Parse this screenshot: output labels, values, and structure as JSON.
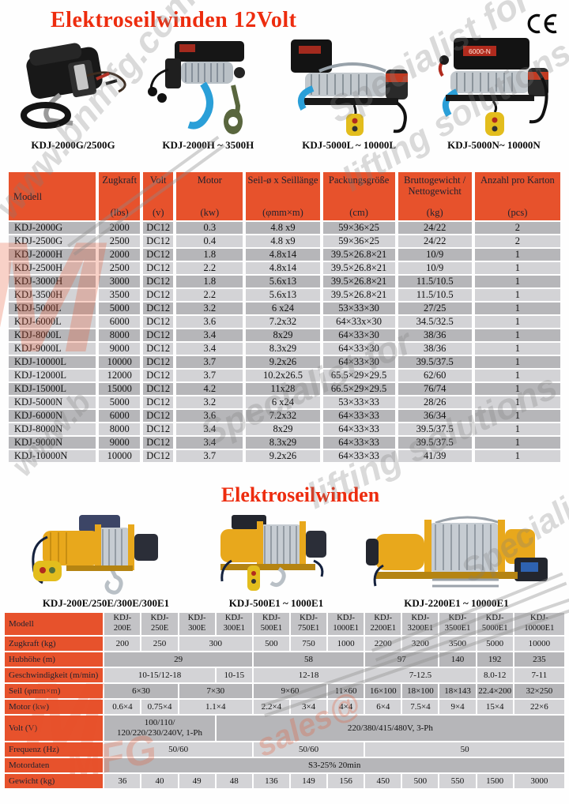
{
  "page": {
    "title_12v": "Elektroseilwinden 12Volt",
    "title_e": "Elektroseilwinden",
    "ce_mark": "CE"
  },
  "products_12v": [
    {
      "caption": "KDJ-2000G/2500G"
    },
    {
      "caption": "KDJ-2000H ~ 3500H"
    },
    {
      "caption": "KDJ-5000L ~ 10000L"
    },
    {
      "caption": "KDJ-5000N~ 10000N",
      "label": "6000-N"
    }
  ],
  "products_e": [
    {
      "caption": "KDJ-200E/250E/300E/300E1"
    },
    {
      "caption": "KDJ-500E1 ~ 1000E1"
    },
    {
      "caption": "KDJ-2200E1 ~ 10000E1"
    }
  ],
  "table1": {
    "headers": [
      {
        "name": "Modell",
        "unit": ""
      },
      {
        "name": "Zugkraft",
        "unit": "(lbs)"
      },
      {
        "name": "Volt",
        "unit": "(v)"
      },
      {
        "name": "Motor",
        "unit": "(kw)"
      },
      {
        "name": "Seil-ø x Seillänge",
        "unit": "(φmm×m)"
      },
      {
        "name": "Packungsgröße",
        "unit": "(cm)"
      },
      {
        "name": "Bruttogewicht /\nNettogewicht",
        "unit": "(kg)"
      },
      {
        "name": "Anzahl pro Karton",
        "unit": "(pcs)"
      }
    ],
    "rows": [
      [
        "KDJ-2000G",
        "2000",
        "DC12",
        "0.3",
        "4.8 x9",
        "59×36×25",
        "24/22",
        "2"
      ],
      [
        "KDJ-2500G",
        "2500",
        "DC12",
        "0.4",
        "4.8 x9",
        "59×36×25",
        "24/22",
        "2"
      ],
      [
        "KDJ-2000H",
        "2000",
        "DC12",
        "1.8",
        "4.8x14",
        "39.5×26.8×21",
        "10/9",
        "1"
      ],
      [
        "KDJ-2500H",
        "2500",
        "DC12",
        "2.2",
        "4.8x14",
        "39.5×26.8×21",
        "10/9",
        "1"
      ],
      [
        "KDJ-3000H",
        "3000",
        "DC12",
        "1.8",
        "5.6x13",
        "39.5×26.8×21",
        "11.5/10.5",
        "1"
      ],
      [
        "KDJ-3500H",
        "3500",
        "DC12",
        "2.2",
        "5.6x13",
        "39.5×26.8×21",
        "11.5/10.5",
        "1"
      ],
      [
        "KDJ-5000L",
        "5000",
        "DC12",
        "3.2",
        "6 x24",
        "53×33×30",
        "27/25",
        "1"
      ],
      [
        "KDJ-6000L",
        "6000",
        "DC12",
        "3.6",
        "7.2x32",
        "64×33x×30",
        "34.5/32.5",
        "1"
      ],
      [
        "KDJ-8000L",
        "8000",
        "DC12",
        "3.4",
        "8x29",
        "64×33×30",
        "38/36",
        "1"
      ],
      [
        "KDJ-9000L",
        "9000",
        "DC12",
        "3.4",
        "8.3x29",
        "64×33×30",
        "38/36",
        "1"
      ],
      [
        "KDJ-10000L",
        "10000",
        "DC12",
        "3.7",
        "9.2x26",
        "64×33×30",
        "39.5/37.5",
        "1"
      ],
      [
        "KDJ-12000L",
        "12000",
        "DC12",
        "3.7",
        "10.2x26.5",
        "65.5×29×29.5",
        "62/60",
        "1"
      ],
      [
        "KDJ-15000L",
        "15000",
        "DC12",
        "4.2",
        "11x28",
        "66.5×29×29.5",
        "76/74",
        "1"
      ],
      [
        "KDJ-5000N",
        "5000",
        "DC12",
        "3.2",
        "6 x24",
        "53×33×33",
        "28/26",
        "1"
      ],
      [
        "KDJ-6000N",
        "6000",
        "DC12",
        "3.6",
        "7.2x32",
        "64×33×33",
        "36/34",
        "1"
      ],
      [
        "KDJ-8000N",
        "8000",
        "DC12",
        "3.4",
        "8x29",
        "64×33×33",
        "39.5/37.5",
        "1"
      ],
      [
        "KDJ-9000N",
        "9000",
        "DC12",
        "3.4",
        "8.3x29",
        "64×33×33",
        "39.5/37.5",
        "1"
      ],
      [
        "KDJ-10000N",
        "10000",
        "DC12",
        "3.7",
        "9.2x26",
        "64×33×33",
        "41/39",
        "1"
      ]
    ]
  },
  "table2": {
    "corner": "Modell",
    "models": [
      "KDJ-200E",
      "KDJ-250E",
      "KDJ-300E",
      "KDJ-300E1",
      "KDJ-500E1",
      "KDJ-750E1",
      "KDJ-1000E1",
      "KDJ-2200E1",
      "KDJ-3200E1",
      "KDJ-3500E1",
      "KDJ-5000E1",
      "KDJ-10000E1"
    ],
    "rows": [
      {
        "label": "Zugkraft (kg)",
        "cells": [
          {
            "t": "200",
            "s": 1
          },
          {
            "t": "250",
            "s": 1
          },
          {
            "t": "300",
            "s": 2
          },
          {
            "t": "500",
            "s": 1
          },
          {
            "t": "750",
            "s": 1
          },
          {
            "t": "1000",
            "s": 1
          },
          {
            "t": "2200",
            "s": 1
          },
          {
            "t": "3200",
            "s": 1
          },
          {
            "t": "3500",
            "s": 1
          },
          {
            "t": "5000",
            "s": 1
          },
          {
            "t": "10000",
            "s": 1
          }
        ]
      },
      {
        "label": "Hubhöhe (m)",
        "cells": [
          {
            "t": "29",
            "s": 4
          },
          {
            "t": "58",
            "s": 3
          },
          {
            "t": "97",
            "s": 2
          },
          {
            "t": "140",
            "s": 1
          },
          {
            "t": "192",
            "s": 1
          },
          {
            "t": "235",
            "s": 1
          }
        ]
      },
      {
        "label": "Geschwindigkeit (m/min)",
        "cells": [
          {
            "t": "10-15/12-18",
            "s": 3
          },
          {
            "t": "10-15",
            "s": 1
          },
          {
            "t": "12-18",
            "s": 3
          },
          {
            "t": "7-12.5",
            "s": 3
          },
          {
            "t": "8.0-12",
            "s": 1
          },
          {
            "t": "7-11",
            "s": 1
          }
        ]
      },
      {
        "label": "Seil (φmm×m)",
        "cells": [
          {
            "t": "6×30",
            "s": 2
          },
          {
            "t": "7×30",
            "s": 2
          },
          {
            "t": "9×60",
            "s": 2
          },
          {
            "t": "11×60",
            "s": 1
          },
          {
            "t": "16×100",
            "s": 1
          },
          {
            "t": "18×100",
            "s": 1
          },
          {
            "t": "18×143",
            "s": 1
          },
          {
            "t": "22.4×200",
            "s": 1
          },
          {
            "t": "32×250",
            "s": 1
          }
        ]
      },
      {
        "label": "Motor (kw)",
        "cells": [
          {
            "t": "0.6×4",
            "s": 1
          },
          {
            "t": "0.75×4",
            "s": 1
          },
          {
            "t": "1.1×4",
            "s": 2
          },
          {
            "t": "2.2×4",
            "s": 1
          },
          {
            "t": "3×4",
            "s": 1
          },
          {
            "t": "4×4",
            "s": 1
          },
          {
            "t": "6×4",
            "s": 1
          },
          {
            "t": "7.5×4",
            "s": 1
          },
          {
            "t": "9×4",
            "s": 1
          },
          {
            "t": "15×4",
            "s": 1
          },
          {
            "t": "22×6",
            "s": 1
          }
        ]
      },
      {
        "label": "Volt (V)",
        "cells": [
          {
            "t": "100/110/\n120/220/230/240V, 1-Ph",
            "s": 3
          },
          {
            "t": "220/380/415/480V, 3-Ph",
            "s": 9
          }
        ]
      },
      {
        "label": "Frequenz (Hz)",
        "cells": [
          {
            "t": "50/60",
            "s": 4
          },
          {
            "t": "50/60",
            "s": 3
          },
          {
            "t": "50",
            "s": 5
          }
        ]
      },
      {
        "label": "Motordaten",
        "cells": [
          {
            "t": "S3-25% 20min",
            "s": 12
          }
        ]
      },
      {
        "label": "Gewicht (kg)",
        "cells": [
          {
            "t": "36",
            "s": 1
          },
          {
            "t": "40",
            "s": 1
          },
          {
            "t": "49",
            "s": 1
          },
          {
            "t": "48",
            "s": 1
          },
          {
            "t": "136",
            "s": 1
          },
          {
            "t": "149",
            "s": 1
          },
          {
            "t": "156",
            "s": 1
          },
          {
            "t": "450",
            "s": 1
          },
          {
            "t": "500",
            "s": 1
          },
          {
            "t": "550",
            "s": 1
          },
          {
            "t": "1500",
            "s": 1
          },
          {
            "t": "3000",
            "s": 1
          }
        ]
      }
    ]
  },
  "watermark": {
    "url": "www.bnmfg.com",
    "url_short": "www.b",
    "spec": "Specialist for",
    "sol": "lifting solutions",
    "sales": "sales@",
    "brand": "MFG",
    "letter": "M"
  },
  "colors": {
    "accent_orange": "#e7522c",
    "title_red": "#ed2c0e",
    "cell_dark": "#b6b6b9",
    "cell_light": "#d3d3d6"
  }
}
